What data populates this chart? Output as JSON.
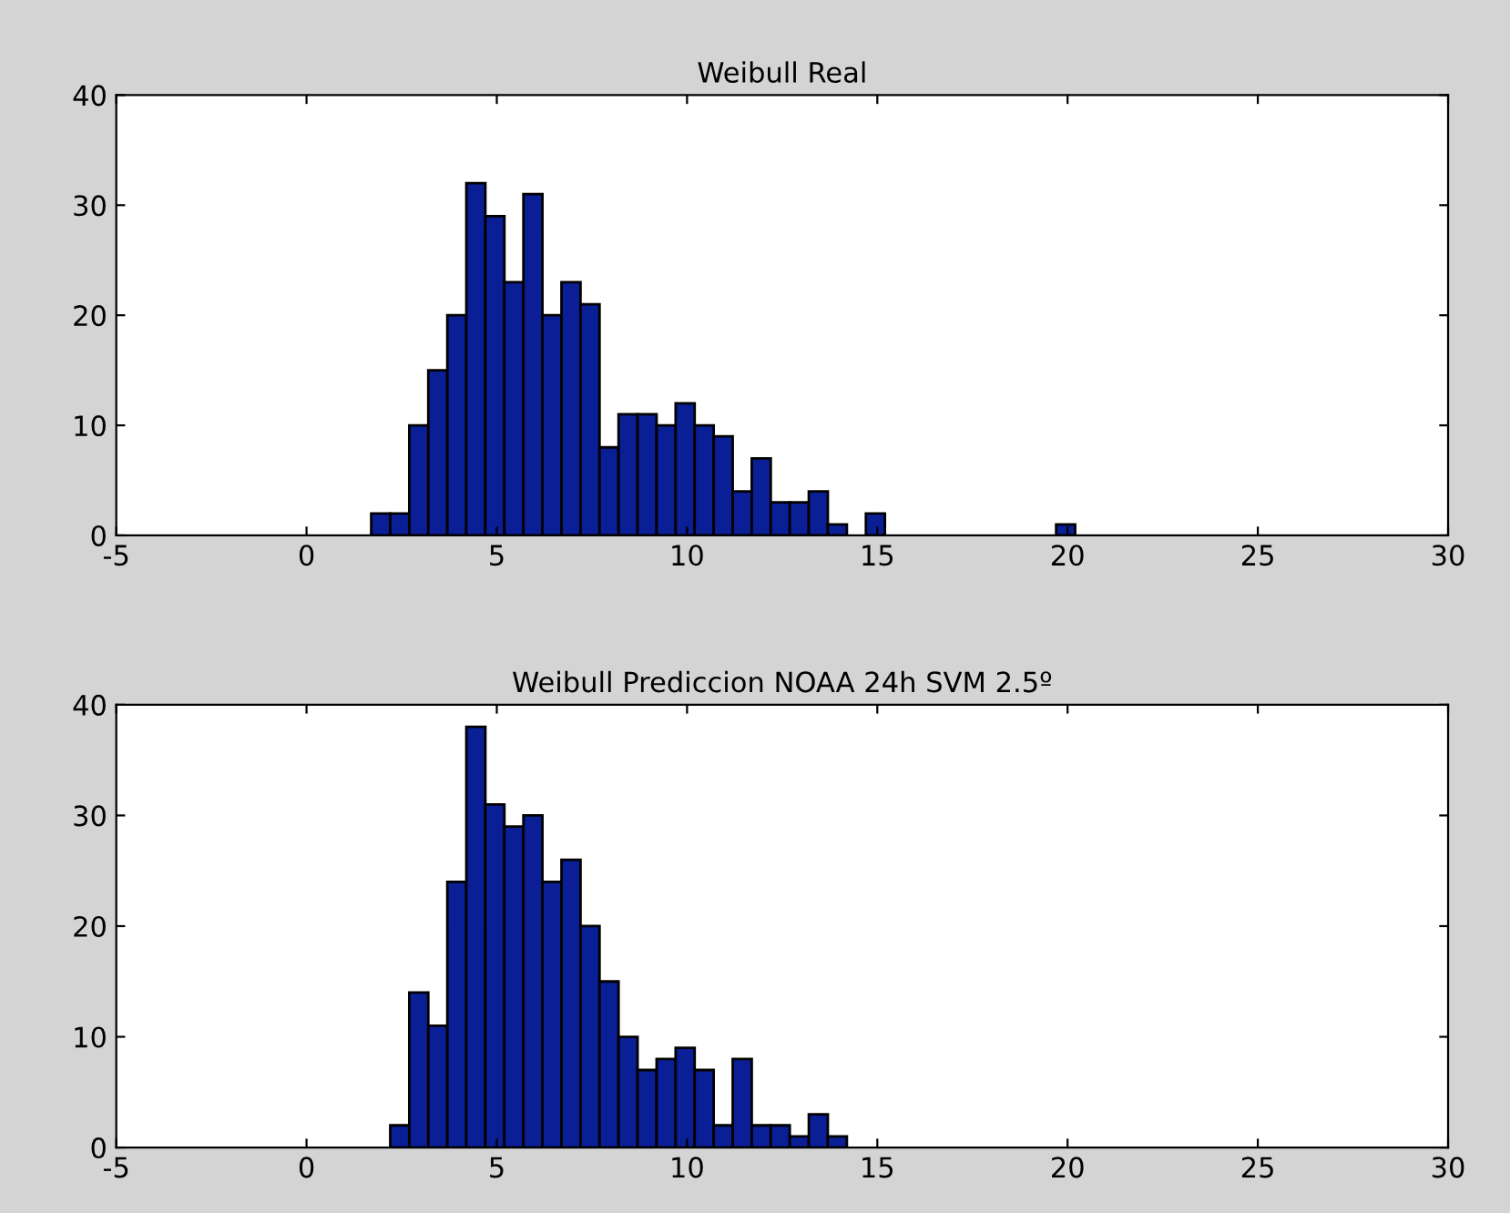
{
  "chart_data": [
    {
      "type": "histogram",
      "title": "Weibull Real",
      "color": "#0a1e96",
      "bins": [
        1.7,
        2.2,
        2.7,
        3.2,
        3.7,
        4.2,
        4.7,
        5.2,
        5.7,
        6.2,
        6.7,
        7.2,
        7.7,
        8.2,
        8.7,
        9.2,
        9.7,
        10.2,
        10.7,
        11.2,
        11.7,
        12.2,
        12.7,
        13.2,
        13.7,
        14.2,
        14.7,
        15.2,
        15.7,
        16.2,
        16.7,
        17.2,
        17.7,
        18.2,
        18.7,
        19.2,
        19.7,
        20.2
      ],
      "values": [
        2,
        2,
        10,
        15,
        20,
        32,
        29,
        23,
        31,
        20,
        23,
        21,
        8,
        11,
        11,
        10,
        12,
        10,
        9,
        4,
        7,
        3,
        3,
        4,
        1,
        0,
        2,
        0,
        0,
        0,
        0,
        0,
        0,
        0,
        0,
        0,
        1
      ],
      "xlim": [
        -5,
        30
      ],
      "xticks": [
        -5,
        0,
        5,
        10,
        15,
        20,
        25,
        30
      ],
      "ylim": [
        0,
        40
      ],
      "yticks": [
        0,
        10,
        20,
        30,
        40
      ]
    },
    {
      "type": "histogram",
      "title": "Weibull Prediccion NOAA 24h SVM 2.5º",
      "color": "#0a1e96",
      "bins": [
        2.2,
        2.7,
        3.2,
        3.7,
        4.2,
        4.7,
        5.2,
        5.7,
        6.2,
        6.7,
        7.2,
        7.7,
        8.2,
        8.7,
        9.2,
        9.7,
        10.2,
        10.7,
        11.2,
        11.7,
        12.2,
        12.7,
        13.2,
        13.7,
        14.2
      ],
      "values": [
        2,
        14,
        11,
        24,
        38,
        31,
        29,
        30,
        24,
        26,
        20,
        15,
        10,
        7,
        8,
        9,
        7,
        2,
        8,
        2,
        2,
        1,
        3,
        1
      ],
      "xlim": [
        -5,
        30
      ],
      "xticks": [
        -5,
        0,
        5,
        10,
        15,
        20,
        25,
        30
      ],
      "ylim": [
        0,
        40
      ],
      "yticks": [
        0,
        10,
        20,
        30,
        40
      ]
    }
  ]
}
